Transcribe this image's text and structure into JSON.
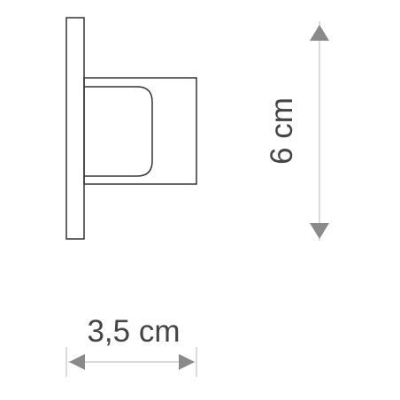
{
  "dimensions": {
    "height_label": "6 cm",
    "width_label": "3,5 cm"
  },
  "colors": {
    "outline": "#333333",
    "dimension_line": "#b9b9b9",
    "arrow": "#8a8a8a",
    "text": "#444444"
  }
}
